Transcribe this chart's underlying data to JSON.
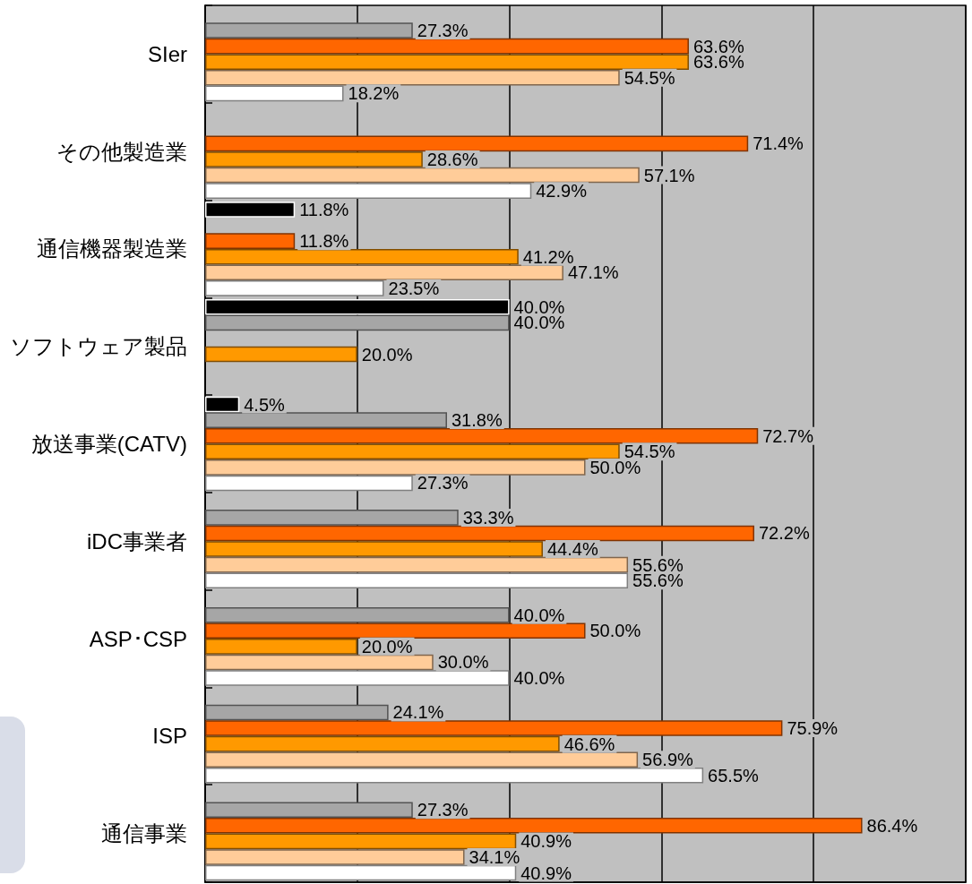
{
  "chart_data": {
    "type": "bar",
    "orientation": "horizontal",
    "categories": [
      "SIer",
      "その他製造業",
      "通信機器製造業",
      "ソフトウェア製品",
      "放送事業(CATV)",
      "iDC事業者",
      "ASP･CSP",
      "ISP",
      "通信事業"
    ],
    "series": [
      {
        "color": "#000000",
        "values": [
          null,
          null,
          11.8,
          40.0,
          4.5,
          null,
          null,
          null,
          null
        ],
        "value_labels": [
          null,
          null,
          "11.8%",
          "40.0%",
          "4.5%",
          null,
          null,
          null,
          null
        ]
      },
      {
        "color": "#a6a6a6",
        "values": [
          27.3,
          null,
          null,
          40.0,
          31.8,
          33.3,
          40.0,
          24.1,
          27.3
        ],
        "value_labels": [
          "27.3%",
          null,
          null,
          "40.0%",
          "31.8%",
          "33.3%",
          "40.0%",
          "24.1%",
          "27.3%"
        ]
      },
      {
        "color": "#ff6600",
        "values": [
          63.6,
          71.4,
          11.8,
          null,
          72.7,
          72.2,
          50.0,
          75.9,
          86.4
        ],
        "value_labels": [
          "63.6%",
          "71.4%",
          "11.8%",
          null,
          "72.7%",
          "72.2%",
          "50.0%",
          "75.9%",
          "86.4%"
        ]
      },
      {
        "color": "#ff9900",
        "values": [
          63.6,
          28.6,
          41.2,
          20.0,
          54.5,
          44.4,
          20.0,
          46.6,
          40.9
        ],
        "value_labels": [
          "63.6%",
          "28.6%",
          "41.2%",
          "20.0%",
          "54.5%",
          "44.4%",
          "20.0%",
          "46.6%",
          "40.9%"
        ]
      },
      {
        "color": "#ffcc99",
        "values": [
          54.5,
          57.1,
          47.1,
          null,
          50.0,
          55.6,
          30.0,
          56.9,
          34.1
        ],
        "value_labels": [
          "54.5%",
          "57.1%",
          "47.1%",
          null,
          "50.0%",
          "55.6%",
          "30.0%",
          "56.9%",
          "34.1%"
        ]
      },
      {
        "color": "#ffffff",
        "values": [
          18.2,
          42.9,
          23.5,
          null,
          27.3,
          55.6,
          40.0,
          65.5,
          40.9
        ],
        "value_labels": [
          "18.2%",
          "42.9%",
          "23.5%",
          null,
          "27.3%",
          "55.6%",
          "40.0%",
          "65.5%",
          "40.9%"
        ]
      }
    ],
    "xlim": [
      0,
      100
    ],
    "xticks": [
      0,
      20,
      40,
      60,
      80,
      100
    ],
    "grid": "x",
    "tick_labels": "y"
  }
}
